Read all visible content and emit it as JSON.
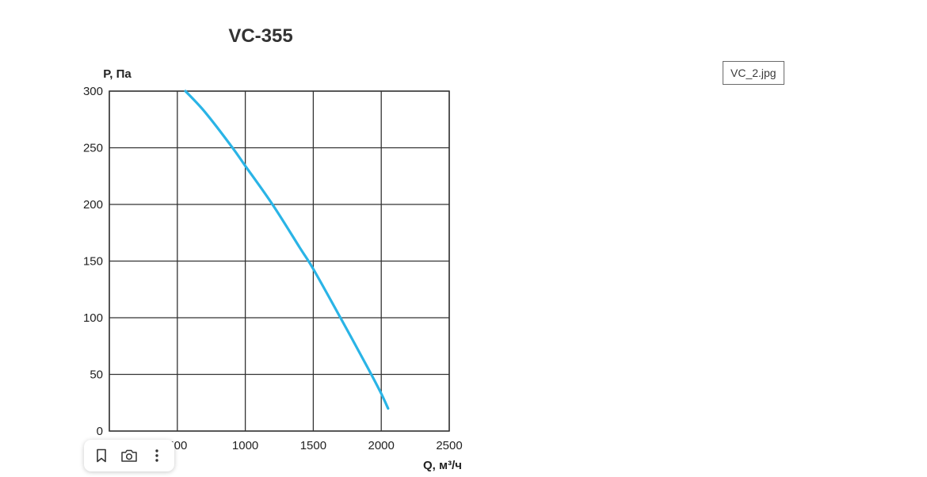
{
  "file_tag": {
    "label": "VC_2.jpg"
  },
  "toolbar": {
    "buttons": [
      {
        "icon": "bookmark-icon"
      },
      {
        "icon": "camera-icon"
      },
      {
        "icon": "more-vertical-icon"
      }
    ]
  },
  "chart_data": {
    "type": "line",
    "title": "VC-355",
    "xlabel": "Q, м³/ч",
    "ylabel": "P, Па",
    "xlim": [
      0,
      2500
    ],
    "ylim": [
      0,
      300
    ],
    "x_ticks": [
      "0",
      "500",
      "1000",
      "1500",
      "2000",
      "2500"
    ],
    "y_ticks": [
      "0",
      "50",
      "100",
      "150",
      "200",
      "250",
      "300"
    ],
    "grid": true,
    "series_color": "#2ab4e6",
    "series": [
      {
        "x": [
          560,
          700,
          900,
          1000,
          1200,
          1400,
          1500,
          1700,
          1900,
          2000,
          2050
        ],
        "y": [
          300,
          282,
          251,
          234,
          200,
          162,
          143,
          100,
          56,
          33,
          20
        ]
      }
    ]
  }
}
